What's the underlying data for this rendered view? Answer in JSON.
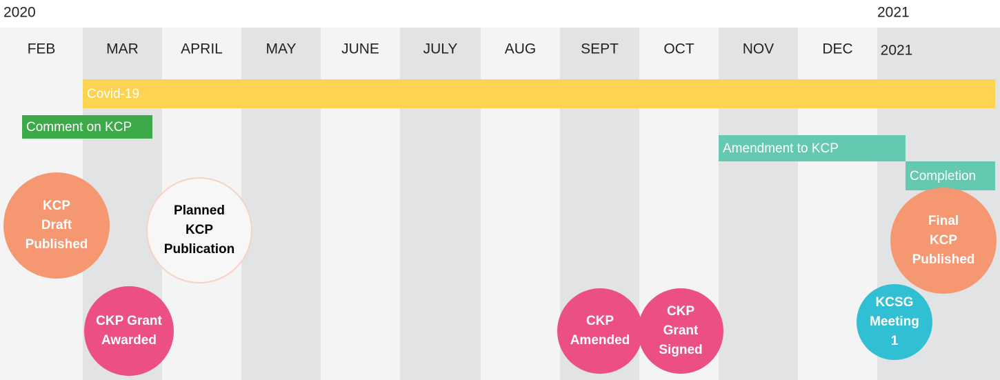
{
  "years": [
    "2020",
    "2021"
  ],
  "months": [
    "FEB",
    "MAR",
    "APRIL",
    "MAY",
    "JUNE",
    "JULY",
    "AUG",
    "SEPT",
    "OCT",
    "NOV",
    "DEC",
    "2021"
  ],
  "bars": [
    {
      "label": "Covid-19"
    },
    {
      "label": "Comment on KCP"
    },
    {
      "label": "Amendment to KCP"
    },
    {
      "label": "Completion"
    }
  ],
  "events": [
    {
      "lines": [
        "KCP",
        "Draft",
        "Published"
      ]
    },
    {
      "lines": [
        "Planned",
        "KCP",
        "Publication"
      ]
    },
    {
      "lines": [
        "CKP Grant",
        "Awarded"
      ]
    },
    {
      "lines": [
        "CKP",
        "Amended"
      ]
    },
    {
      "lines": [
        "CKP",
        "Grant",
        "Signed"
      ]
    },
    {
      "lines": [
        "KCSG",
        "Meeting",
        "1"
      ]
    },
    {
      "lines": [
        "Final",
        "KCP",
        "Published"
      ]
    }
  ]
}
